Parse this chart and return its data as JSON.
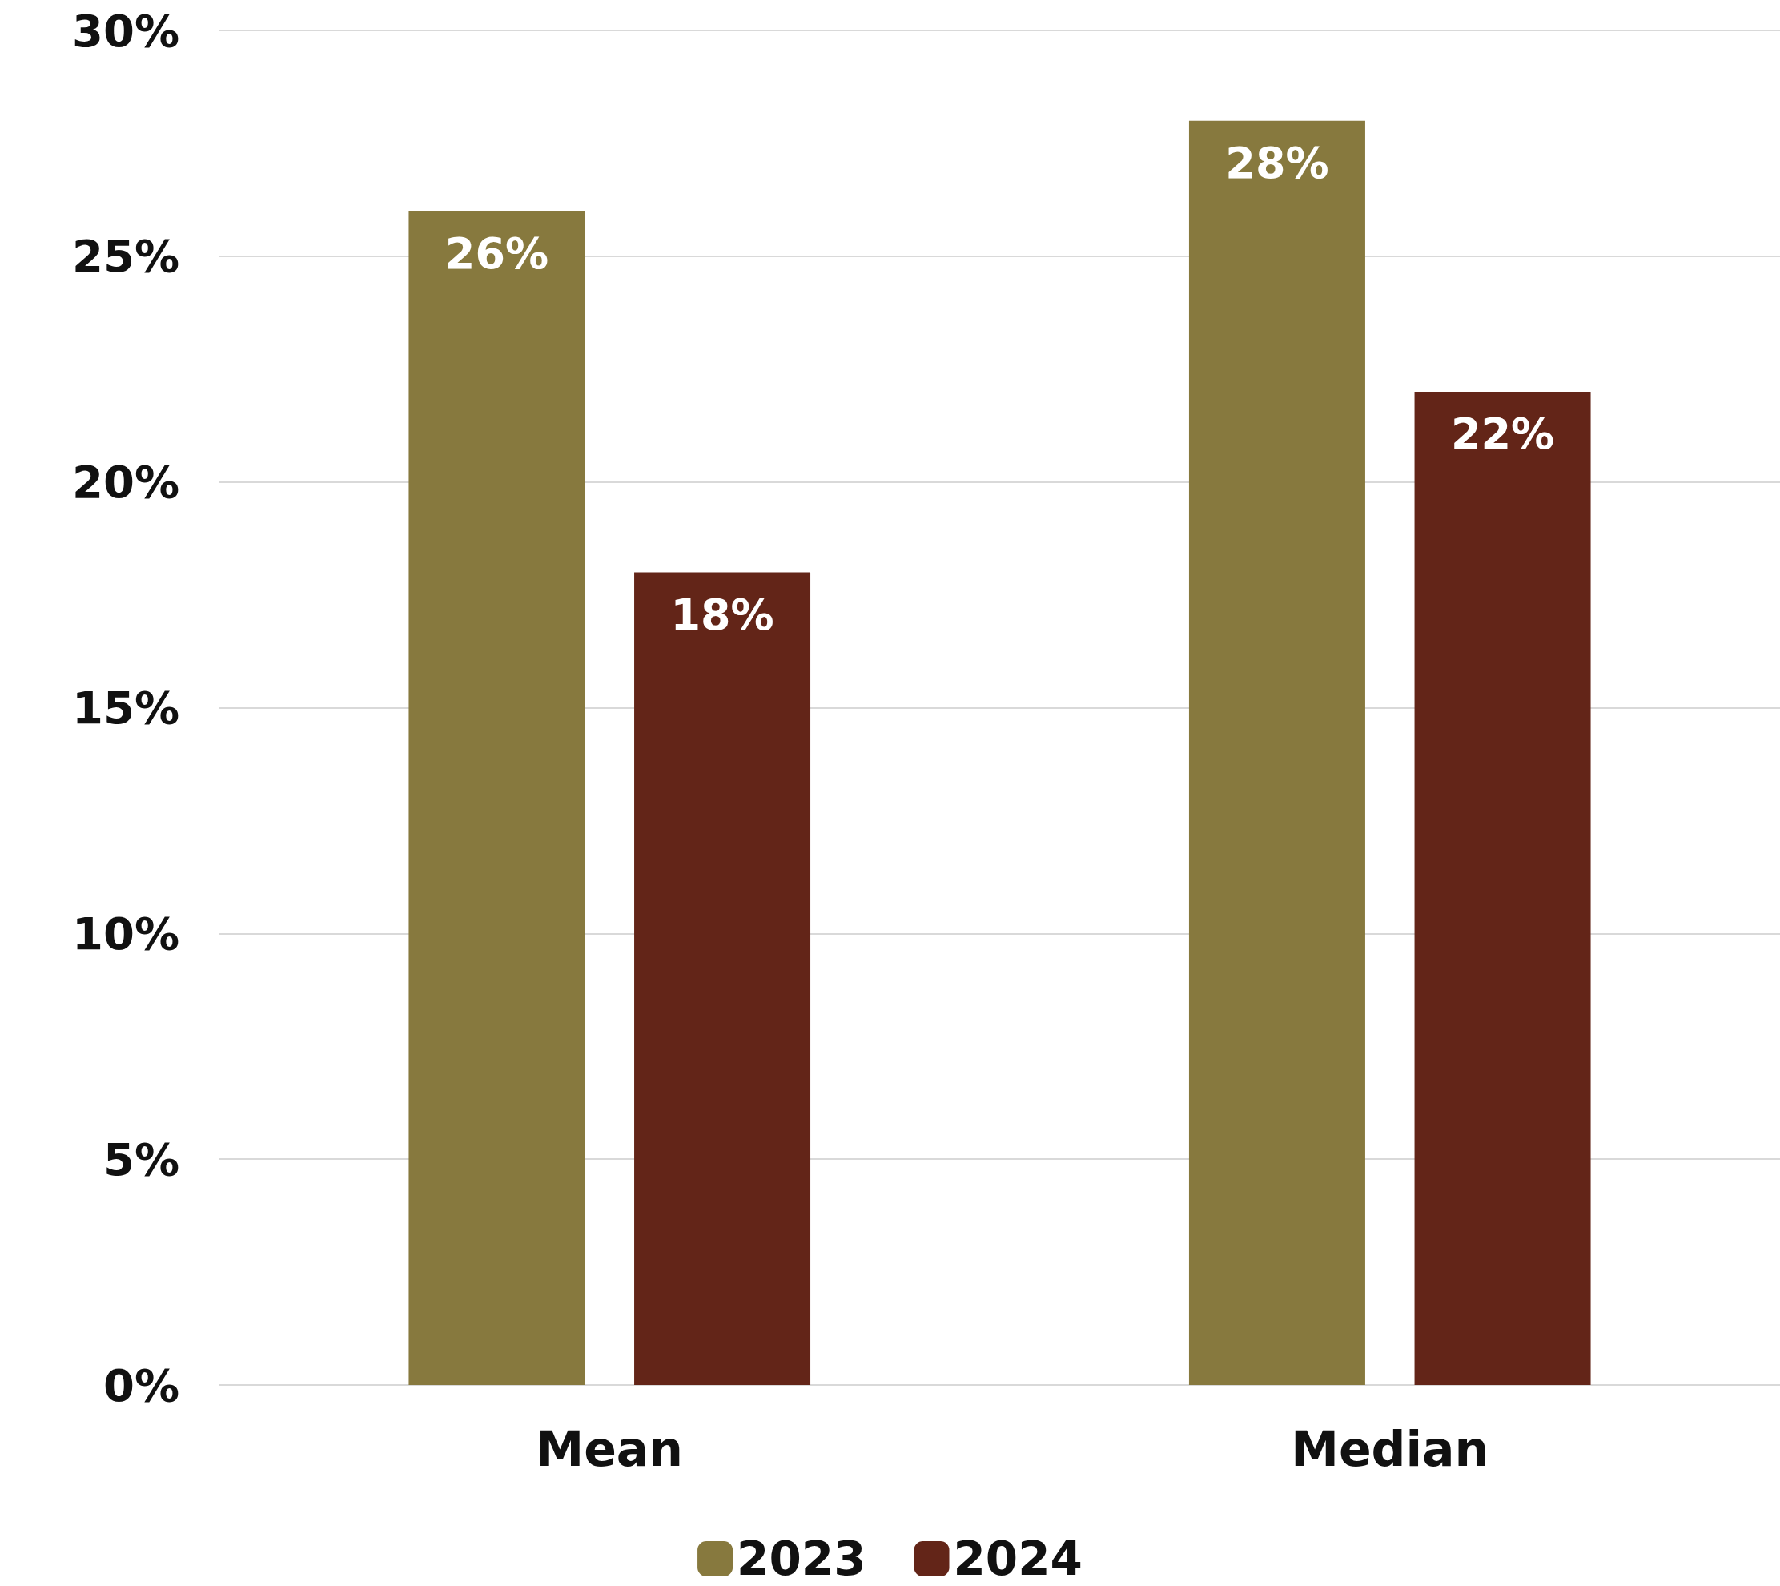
{
  "chart_data": {
    "type": "bar",
    "categories": [
      "Mean",
      "Median"
    ],
    "series": [
      {
        "name": "2023",
        "color": "#87793e",
        "values": [
          26,
          28
        ],
        "value_labels": [
          "26%",
          "28%"
        ]
      },
      {
        "name": "2024",
        "color": "#632518",
        "values": [
          18,
          22
        ],
        "value_labels": [
          "18%",
          "22%"
        ]
      }
    ],
    "ylim": [
      0,
      30
    ],
    "yticks": [
      {
        "value": 0,
        "label": "0%"
      },
      {
        "value": 5,
        "label": "5%"
      },
      {
        "value": 10,
        "label": "10%"
      },
      {
        "value": 15,
        "label": "15%"
      },
      {
        "value": 20,
        "label": "20%"
      },
      {
        "value": 25,
        "label": "25%"
      },
      {
        "value": 30,
        "label": "30%"
      }
    ],
    "grid": "y",
    "legend": "bottom"
  }
}
